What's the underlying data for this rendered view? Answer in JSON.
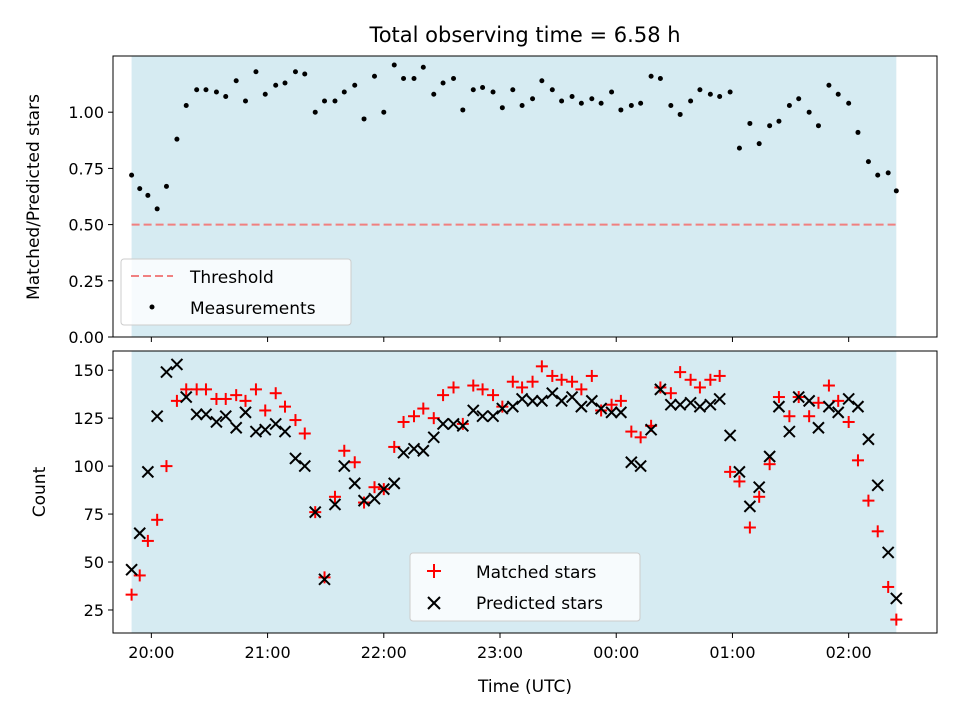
{
  "figure": {
    "title": "Total observing time = 6.58 h",
    "xlabel": "Time (UTC)"
  },
  "chart_data": [
    {
      "type": "scatter",
      "panel": "top",
      "ylabel": "Matched/Predicted stars",
      "ylim": [
        0,
        1.25
      ],
      "yticks": [
        "0.00",
        "0.25",
        "0.50",
        "0.75",
        "1.00"
      ],
      "xlim_hours": [
        19.67,
        26.76
      ],
      "observing_window_hours": [
        19.83,
        26.41
      ],
      "threshold": 0.5,
      "legend": {
        "position": "lower-left",
        "entries": [
          "Threshold",
          "Measurements"
        ]
      },
      "series": [
        {
          "name": "Measurements",
          "x": [
            19.83,
            19.9,
            19.97,
            20.05,
            20.13,
            20.22,
            20.3,
            20.39,
            20.47,
            20.56,
            20.64,
            20.73,
            20.81,
            20.9,
            20.98,
            21.07,
            21.15,
            21.24,
            21.32,
            21.41,
            21.49,
            21.58,
            21.66,
            21.75,
            21.83,
            21.92,
            22.0,
            22.09,
            22.17,
            22.26,
            22.34,
            22.43,
            22.51,
            22.6,
            22.68,
            22.77,
            22.85,
            22.94,
            23.02,
            23.11,
            23.19,
            23.28,
            23.36,
            23.45,
            23.53,
            23.62,
            23.7,
            23.79,
            23.87,
            23.96,
            24.04,
            24.13,
            24.21,
            24.3,
            24.38,
            24.47,
            24.55,
            24.64,
            24.72,
            24.81,
            24.89,
            24.98,
            25.06,
            25.15,
            25.23,
            25.32,
            25.4,
            25.49,
            25.57,
            25.66,
            25.74,
            25.83,
            25.91,
            26.0,
            26.08,
            26.17,
            26.25,
            26.34,
            26.41
          ],
          "y": [
            0.72,
            0.66,
            0.63,
            0.57,
            0.67,
            0.88,
            1.03,
            1.1,
            1.1,
            1.09,
            1.07,
            1.14,
            1.05,
            1.18,
            1.08,
            1.12,
            1.13,
            1.18,
            1.17,
            1.0,
            1.05,
            1.05,
            1.09,
            1.12,
            0.97,
            1.16,
            1.0,
            1.21,
            1.15,
            1.15,
            1.2,
            1.08,
            1.13,
            1.15,
            1.01,
            1.1,
            1.11,
            1.09,
            1.02,
            1.1,
            1.03,
            1.06,
            1.14,
            1.1,
            1.05,
            1.07,
            1.04,
            1.06,
            1.04,
            1.09,
            1.01,
            1.03,
            1.04,
            1.16,
            1.15,
            1.03,
            0.99,
            1.05,
            1.1,
            1.08,
            1.07,
            1.09,
            0.84,
            0.95,
            0.86,
            0.94,
            0.96,
            1.03,
            1.06,
            1.0,
            0.94,
            1.12,
            1.08,
            1.04,
            0.91,
            0.78,
            0.72,
            0.73,
            0.65
          ]
        }
      ]
    },
    {
      "type": "scatter",
      "panel": "bottom",
      "ylabel": "Count",
      "ylim": [
        13,
        160
      ],
      "yticks": [
        "25",
        "50",
        "75",
        "100",
        "125",
        "150"
      ],
      "xticks": [
        "20:00",
        "21:00",
        "22:00",
        "23:00",
        "00:00",
        "01:00",
        "02:00"
      ],
      "xlim_hours": [
        19.67,
        26.76
      ],
      "observing_window_hours": [
        19.83,
        26.41
      ],
      "legend": {
        "position": "lower-center",
        "entries": [
          "Matched stars",
          "Predicted stars"
        ]
      },
      "series": [
        {
          "name": "Matched stars",
          "x": [
            19.83,
            19.9,
            19.97,
            20.05,
            20.13,
            20.22,
            20.3,
            20.39,
            20.47,
            20.56,
            20.64,
            20.73,
            20.81,
            20.9,
            20.98,
            21.07,
            21.15,
            21.24,
            21.32,
            21.41,
            21.49,
            21.58,
            21.66,
            21.75,
            21.83,
            21.92,
            22.0,
            22.09,
            22.17,
            22.26,
            22.34,
            22.43,
            22.51,
            22.6,
            22.68,
            22.77,
            22.85,
            22.94,
            23.02,
            23.11,
            23.19,
            23.28,
            23.36,
            23.45,
            23.53,
            23.62,
            23.7,
            23.79,
            23.87,
            23.96,
            24.04,
            24.13,
            24.21,
            24.3,
            24.38,
            24.47,
            24.55,
            24.64,
            24.72,
            24.81,
            24.89,
            24.98,
            25.06,
            25.15,
            25.23,
            25.32,
            25.4,
            25.49,
            25.57,
            25.66,
            25.74,
            25.83,
            25.91,
            26.0,
            26.08,
            26.17,
            26.25,
            26.34,
            26.41
          ],
          "y": [
            33,
            43,
            61,
            72,
            100,
            134,
            140,
            140,
            140,
            135,
            135,
            137,
            134,
            140,
            129,
            138,
            131,
            124,
            117,
            76,
            42,
            84,
            108,
            102,
            81,
            89,
            88,
            110,
            123,
            126,
            130,
            125,
            137,
            141,
            122,
            142,
            140,
            137,
            131,
            144,
            141,
            144,
            152,
            147,
            145,
            144,
            140,
            147,
            129,
            132,
            134,
            118,
            115,
            121,
            141,
            138,
            149,
            145,
            141,
            145,
            147,
            97,
            92,
            68,
            84,
            101,
            136,
            126,
            136,
            126,
            133,
            142,
            134,
            123,
            103,
            82,
            66,
            37,
            20
          ]
        },
        {
          "name": "Predicted stars",
          "x": [
            19.83,
            19.9,
            19.97,
            20.05,
            20.13,
            20.22,
            20.3,
            20.39,
            20.47,
            20.56,
            20.64,
            20.73,
            20.81,
            20.9,
            20.98,
            21.07,
            21.15,
            21.24,
            21.32,
            21.41,
            21.49,
            21.58,
            21.66,
            21.75,
            21.83,
            21.92,
            22.0,
            22.09,
            22.17,
            22.26,
            22.34,
            22.43,
            22.51,
            22.6,
            22.68,
            22.77,
            22.85,
            22.94,
            23.02,
            23.11,
            23.19,
            23.28,
            23.36,
            23.45,
            23.53,
            23.62,
            23.7,
            23.79,
            23.87,
            23.96,
            24.04,
            24.13,
            24.21,
            24.3,
            24.38,
            24.47,
            24.55,
            24.64,
            24.72,
            24.81,
            24.89,
            24.98,
            25.06,
            25.15,
            25.23,
            25.32,
            25.4,
            25.49,
            25.57,
            25.66,
            25.74,
            25.83,
            25.91,
            26.0,
            26.08,
            26.17,
            26.25,
            26.34,
            26.41
          ],
          "y": [
            46,
            65,
            97,
            126,
            149,
            153,
            136,
            127,
            127,
            123,
            126,
            120,
            128,
            118,
            119,
            122,
            118,
            104,
            100,
            76,
            41,
            80,
            100,
            91,
            82,
            83,
            88,
            91,
            107,
            109,
            108,
            115,
            122,
            122,
            121,
            129,
            126,
            126,
            130,
            131,
            135,
            134,
            134,
            138,
            134,
            136,
            131,
            134,
            130,
            128,
            128,
            102,
            100,
            119,
            140,
            132,
            132,
            133,
            131,
            132,
            135,
            116,
            97,
            79,
            89,
            105,
            131,
            118,
            136,
            134,
            120,
            131,
            128,
            135,
            131,
            114,
            90,
            55,
            31
          ]
        }
      ]
    }
  ]
}
